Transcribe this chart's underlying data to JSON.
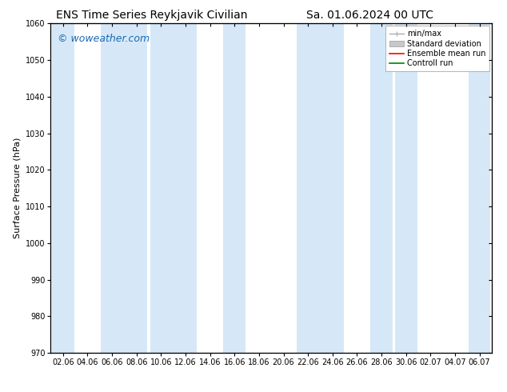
{
  "title_left": "ENS Time Series Reykjavik Civilian",
  "title_right": "Sa. 01.06.2024 00 UTC",
  "ylabel": "Surface Pressure (hPa)",
  "ylim": [
    970,
    1060
  ],
  "yticks": [
    970,
    980,
    990,
    1000,
    1010,
    1020,
    1030,
    1040,
    1050,
    1060
  ],
  "xtick_labels": [
    "02.06",
    "04.06",
    "06.06",
    "08.06",
    "10.06",
    "12.06",
    "14.06",
    "16.06",
    "18.06",
    "20.06",
    "22.06",
    "24.06",
    "26.06",
    "28.06",
    "30.06",
    "02.07",
    "04.07",
    "06.07"
  ],
  "watermark": "© woweather.com",
  "watermark_color": "#1a6ab5",
  "background_color": "#ffffff",
  "plot_bg_color": "#ffffff",
  "band_color": "#d6e8f7",
  "legend_labels": [
    "min/max",
    "Standard deviation",
    "Ensemble mean run",
    "Controll run"
  ],
  "legend_colors": [
    "#aaaaaa",
    "#c8c8c8",
    "#ff0000",
    "#008000"
  ],
  "title_fontsize": 10,
  "axis_fontsize": 8,
  "tick_fontsize": 7,
  "watermark_fontsize": 9,
  "legend_fontsize": 7
}
